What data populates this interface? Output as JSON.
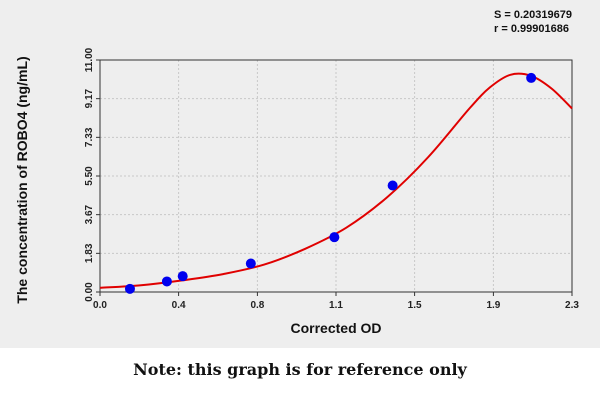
{
  "stats": {
    "s_line": "S = 0.20319679",
    "r_line": "r = 0.99901686"
  },
  "note": "Note: this graph is for reference only",
  "colors": {
    "panel": "#eeeeee",
    "curve": "#e00000",
    "point": "#0000ee",
    "axis": "#333333",
    "grid": "#c8c8c8"
  },
  "chart_data": {
    "type": "scatter",
    "title": "",
    "xlabel": "Corrected OD",
    "ylabel": "The concentration of ROBO4 (ng/mL)",
    "xlim": [
      0.0,
      2.3
    ],
    "ylim": [
      0.0,
      11.0
    ],
    "x_ticks": [
      "0.0",
      "0.4",
      "0.8",
      "1.1",
      "1.5",
      "1.9",
      "2.3"
    ],
    "x_tick_values": [
      0.0,
      0.383,
      0.767,
      1.15,
      1.533,
      1.917,
      2.3
    ],
    "y_ticks": [
      "0.00",
      "1.83",
      "3.67",
      "5.50",
      "7.33",
      "9.17",
      "11.00"
    ],
    "y_tick_values": [
      0.0,
      1.833,
      3.667,
      5.5,
      7.333,
      9.167,
      11.0
    ],
    "grid": true,
    "points": {
      "x": [
        0.146,
        0.326,
        0.403,
        0.735,
        1.142,
        1.426,
        2.101
      ],
      "y": [
        0.15,
        0.5,
        0.75,
        1.35,
        2.6,
        5.05,
        10.15
      ]
    },
    "fit_curve": {
      "x": [
        0.0,
        0.2,
        0.4,
        0.6,
        0.8,
        1.0,
        1.2,
        1.4,
        1.6,
        1.8,
        1.9,
        2.0,
        2.1,
        2.2,
        2.3
      ],
      "y": [
        0.2,
        0.32,
        0.55,
        0.85,
        1.3,
        2.05,
        3.05,
        4.5,
        6.4,
        8.7,
        9.7,
        10.3,
        10.25,
        9.65,
        8.7
      ]
    }
  }
}
